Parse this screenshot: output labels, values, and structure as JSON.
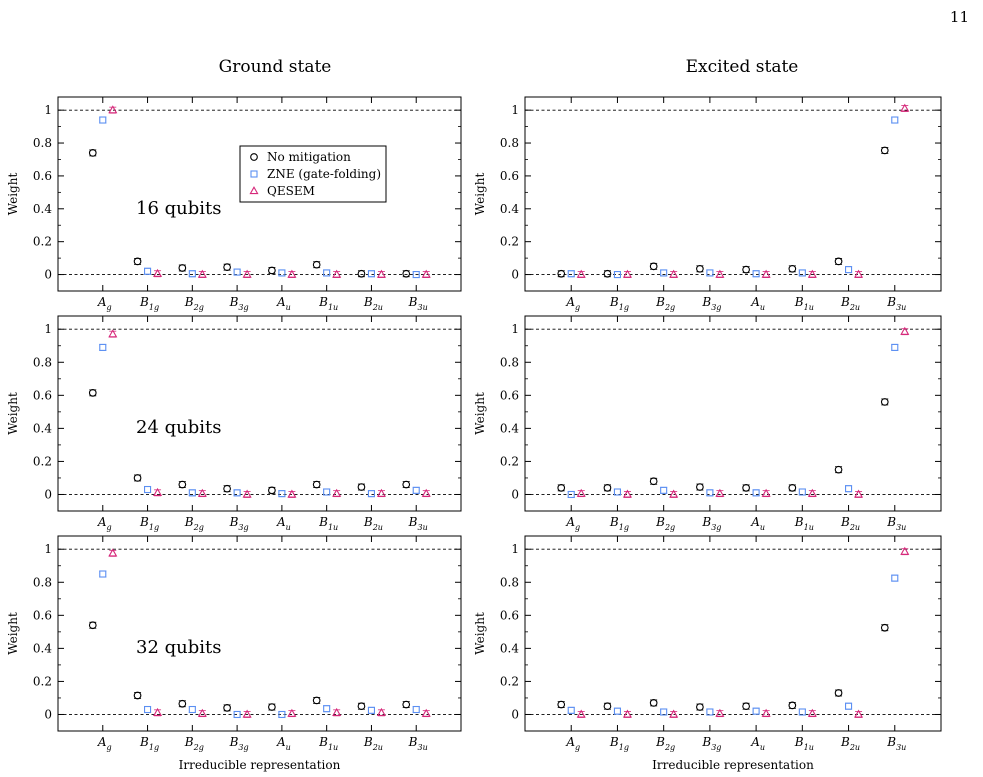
{
  "page_number": "11",
  "column_titles": [
    "Ground state",
    "Excited state"
  ],
  "colors": {
    "no_mitigation": "#000000",
    "zne": "#5b8ff2",
    "qesem": "#d6287a"
  },
  "legend_entries": [
    "No mitigation",
    "ZNE (gate-folding)",
    "QESEM"
  ],
  "chart_data": [
    {
      "type": "scatter",
      "state": "Ground state",
      "panel_label": "16 qubits",
      "ylabel": "Weight",
      "xlabel": "",
      "ylim": [
        -0.1,
        1.08
      ],
      "yticks": [
        0,
        0.2,
        0.4,
        0.6,
        0.8,
        1
      ],
      "categories": [
        "Ag",
        "B1g",
        "B2g",
        "B3g",
        "Au",
        "B1u",
        "B2u",
        "B3u"
      ],
      "series": [
        {
          "name": "No mitigation",
          "values": [
            0.74,
            0.08,
            0.04,
            0.045,
            0.025,
            0.06,
            0.005,
            0.005
          ]
        },
        {
          "name": "ZNE (gate-folding)",
          "values": [
            0.94,
            0.02,
            0.005,
            0.015,
            0.01,
            0.01,
            0.005,
            0.0
          ]
        },
        {
          "name": "QESEM",
          "values": [
            1.0,
            0.005,
            0.0,
            0.0,
            0.0,
            0.0,
            0.0,
            0.0
          ]
        }
      ]
    },
    {
      "type": "scatter",
      "state": "Excited state",
      "panel_label": "",
      "ylabel": "Weight",
      "xlabel": "",
      "ylim": [
        -0.1,
        1.08
      ],
      "yticks": [
        0,
        0.2,
        0.4,
        0.6,
        0.8,
        1
      ],
      "categories": [
        "Ag",
        "B1g",
        "B2g",
        "B3g",
        "Au",
        "B1u",
        "B2u",
        "B3u"
      ],
      "series": [
        {
          "name": "No mitigation",
          "values": [
            0.005,
            0.005,
            0.05,
            0.035,
            0.03,
            0.035,
            0.08,
            0.755
          ]
        },
        {
          "name": "ZNE (gate-folding)",
          "values": [
            0.005,
            0.0,
            0.01,
            0.01,
            0.005,
            0.01,
            0.03,
            0.94
          ]
        },
        {
          "name": "QESEM",
          "values": [
            0.0,
            0.0,
            0.0,
            0.0,
            0.0,
            0.0,
            0.0,
            1.01
          ]
        }
      ]
    },
    {
      "type": "scatter",
      "state": "Ground state",
      "panel_label": "24 qubits",
      "ylabel": "Weight",
      "xlabel": "",
      "ylim": [
        -0.1,
        1.08
      ],
      "yticks": [
        0,
        0.2,
        0.4,
        0.6,
        0.8,
        1
      ],
      "categories": [
        "Ag",
        "B1g",
        "B2g",
        "B3g",
        "Au",
        "B1u",
        "B2u",
        "B3u"
      ],
      "series": [
        {
          "name": "No mitigation",
          "values": [
            0.615,
            0.1,
            0.06,
            0.035,
            0.025,
            0.06,
            0.045,
            0.06
          ]
        },
        {
          "name": "ZNE (gate-folding)",
          "values": [
            0.89,
            0.03,
            0.01,
            0.01,
            0.005,
            0.015,
            0.005,
            0.025
          ]
        },
        {
          "name": "QESEM",
          "values": [
            0.97,
            0.01,
            0.005,
            0.0,
            0.0,
            0.005,
            0.005,
            0.005
          ]
        }
      ]
    },
    {
      "type": "scatter",
      "state": "Excited state",
      "panel_label": "",
      "ylabel": "Weight",
      "xlabel": "",
      "ylim": [
        -0.1,
        1.08
      ],
      "yticks": [
        0,
        0.2,
        0.4,
        0.6,
        0.8,
        1
      ],
      "categories": [
        "Ag",
        "B1g",
        "B2g",
        "B3g",
        "Au",
        "B1u",
        "B2u",
        "B3u"
      ],
      "series": [
        {
          "name": "No mitigation",
          "values": [
            0.04,
            0.04,
            0.08,
            0.045,
            0.04,
            0.04,
            0.15,
            0.56
          ]
        },
        {
          "name": "ZNE (gate-folding)",
          "values": [
            0.0,
            0.015,
            0.025,
            0.01,
            0.01,
            0.015,
            0.035,
            0.89
          ]
        },
        {
          "name": "QESEM",
          "values": [
            0.005,
            0.0,
            0.0,
            0.005,
            0.005,
            0.005,
            0.0,
            0.985
          ]
        }
      ]
    },
    {
      "type": "scatter",
      "state": "Ground state",
      "panel_label": "32 qubits",
      "ylabel": "Weight",
      "xlabel": "Irreducible representation",
      "ylim": [
        -0.1,
        1.08
      ],
      "yticks": [
        0,
        0.2,
        0.4,
        0.6,
        0.8,
        1
      ],
      "categories": [
        "Ag",
        "B1g",
        "B2g",
        "B3g",
        "Au",
        "B1u",
        "B2u",
        "B3u"
      ],
      "series": [
        {
          "name": "No mitigation",
          "values": [
            0.54,
            0.115,
            0.065,
            0.04,
            0.045,
            0.085,
            0.05,
            0.06
          ]
        },
        {
          "name": "ZNE (gate-folding)",
          "values": [
            0.85,
            0.03,
            0.03,
            0.0,
            0.0,
            0.035,
            0.025,
            0.03
          ]
        },
        {
          "name": "QESEM",
          "values": [
            0.975,
            0.01,
            0.005,
            0.0,
            0.005,
            0.01,
            0.01,
            0.005
          ]
        }
      ]
    },
    {
      "type": "scatter",
      "state": "Excited state",
      "panel_label": "",
      "ylabel": "Weight",
      "xlabel": "Irreducible representation",
      "ylim": [
        -0.1,
        1.08
      ],
      "yticks": [
        0,
        0.2,
        0.4,
        0.6,
        0.8,
        1
      ],
      "categories": [
        "Ag",
        "B1g",
        "B2g",
        "B3g",
        "Au",
        "B1u",
        "B2u",
        "B3u"
      ],
      "series": [
        {
          "name": "No mitigation",
          "values": [
            0.06,
            0.05,
            0.07,
            0.045,
            0.05,
            0.055,
            0.13,
            0.525
          ]
        },
        {
          "name": "ZNE (gate-folding)",
          "values": [
            0.025,
            0.02,
            0.015,
            0.015,
            0.02,
            0.015,
            0.05,
            0.825
          ]
        },
        {
          "name": "QESEM",
          "values": [
            0.0,
            0.0,
            0.0,
            0.005,
            0.005,
            0.005,
            0.0,
            0.985
          ]
        }
      ]
    }
  ]
}
